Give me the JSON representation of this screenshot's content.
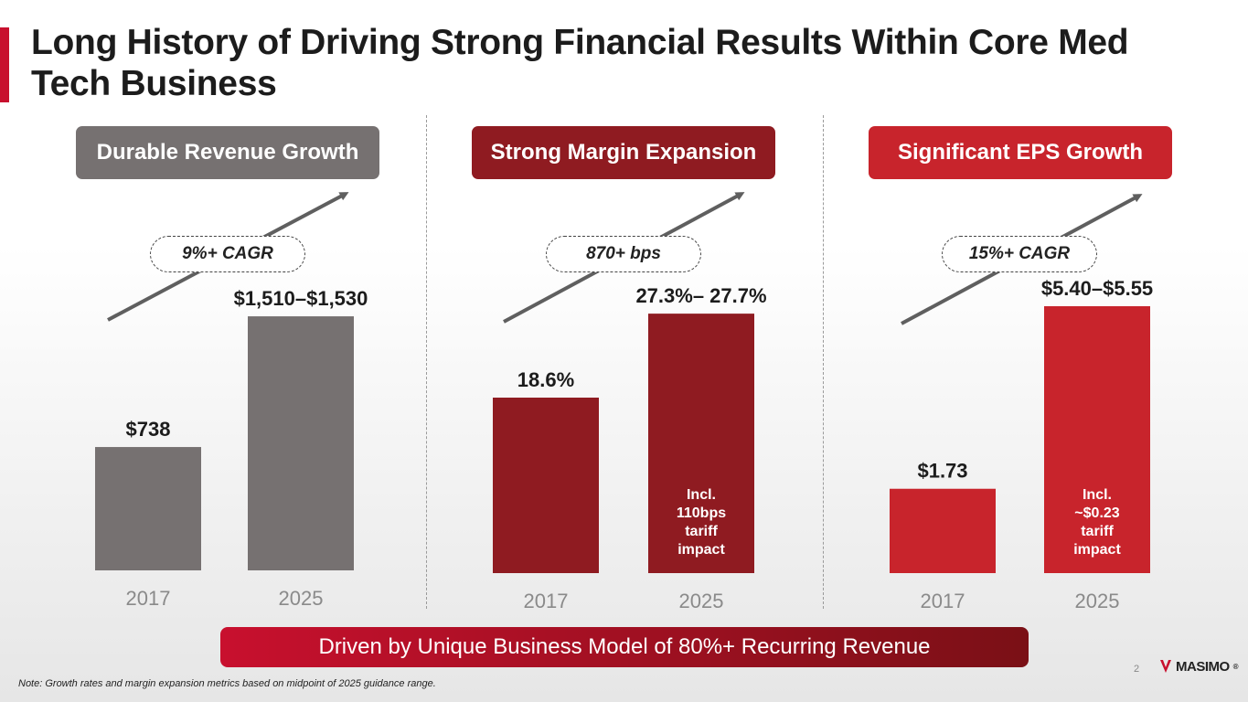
{
  "title": "Long History of Driving Strong Financial Results Within Core Med Tech Business",
  "banner": "Driven by Unique Business Model of 80%+ Recurring Revenue",
  "note": "Note: Growth rates and margin expansion metrics based on midpoint of 2025 guidance range.",
  "page_number": "2",
  "logo_text": "MASIMO",
  "logo_mark": "®",
  "colors": {
    "accent": "#c8102e",
    "gray": "#767171",
    "dark_red": "#8f1b21",
    "red": "#c8242c"
  },
  "chart_data": [
    {
      "type": "bar",
      "title": "Durable Revenue Growth",
      "annotation": "9%+ CAGR",
      "categories": [
        "2017",
        "2025"
      ],
      "values": [
        738,
        1520
      ],
      "value_labels": [
        "$738",
        "$1,510–$1,530"
      ],
      "inner_labels": [
        "",
        ""
      ],
      "color": "#767171",
      "header_color": "#767171",
      "ylim": [
        0,
        1750
      ]
    },
    {
      "type": "bar",
      "title": "Strong Margin Expansion",
      "annotation": "870+ bps",
      "categories": [
        "2017",
        "2025"
      ],
      "values": [
        18.6,
        27.5
      ],
      "value_labels": [
        "18.6%",
        "27.3%– 27.7%"
      ],
      "inner_labels": [
        "",
        "Incl. 110bps tariff impact"
      ],
      "color": "#8f1b21",
      "header_color": "#8f1b21",
      "ylim": [
        0,
        31
      ]
    },
    {
      "type": "bar",
      "title": "Significant EPS Growth",
      "annotation": "15%+ CAGR",
      "categories": [
        "2017",
        "2025"
      ],
      "values": [
        1.73,
        5.475
      ],
      "value_labels": [
        "$1.73",
        "$5.40–$5.55"
      ],
      "inner_labels": [
        "",
        "Incl. ~$0.23 tariff impact"
      ],
      "color": "#c8242c",
      "header_color": "#c8242c",
      "ylim": [
        0,
        6.0
      ]
    }
  ]
}
